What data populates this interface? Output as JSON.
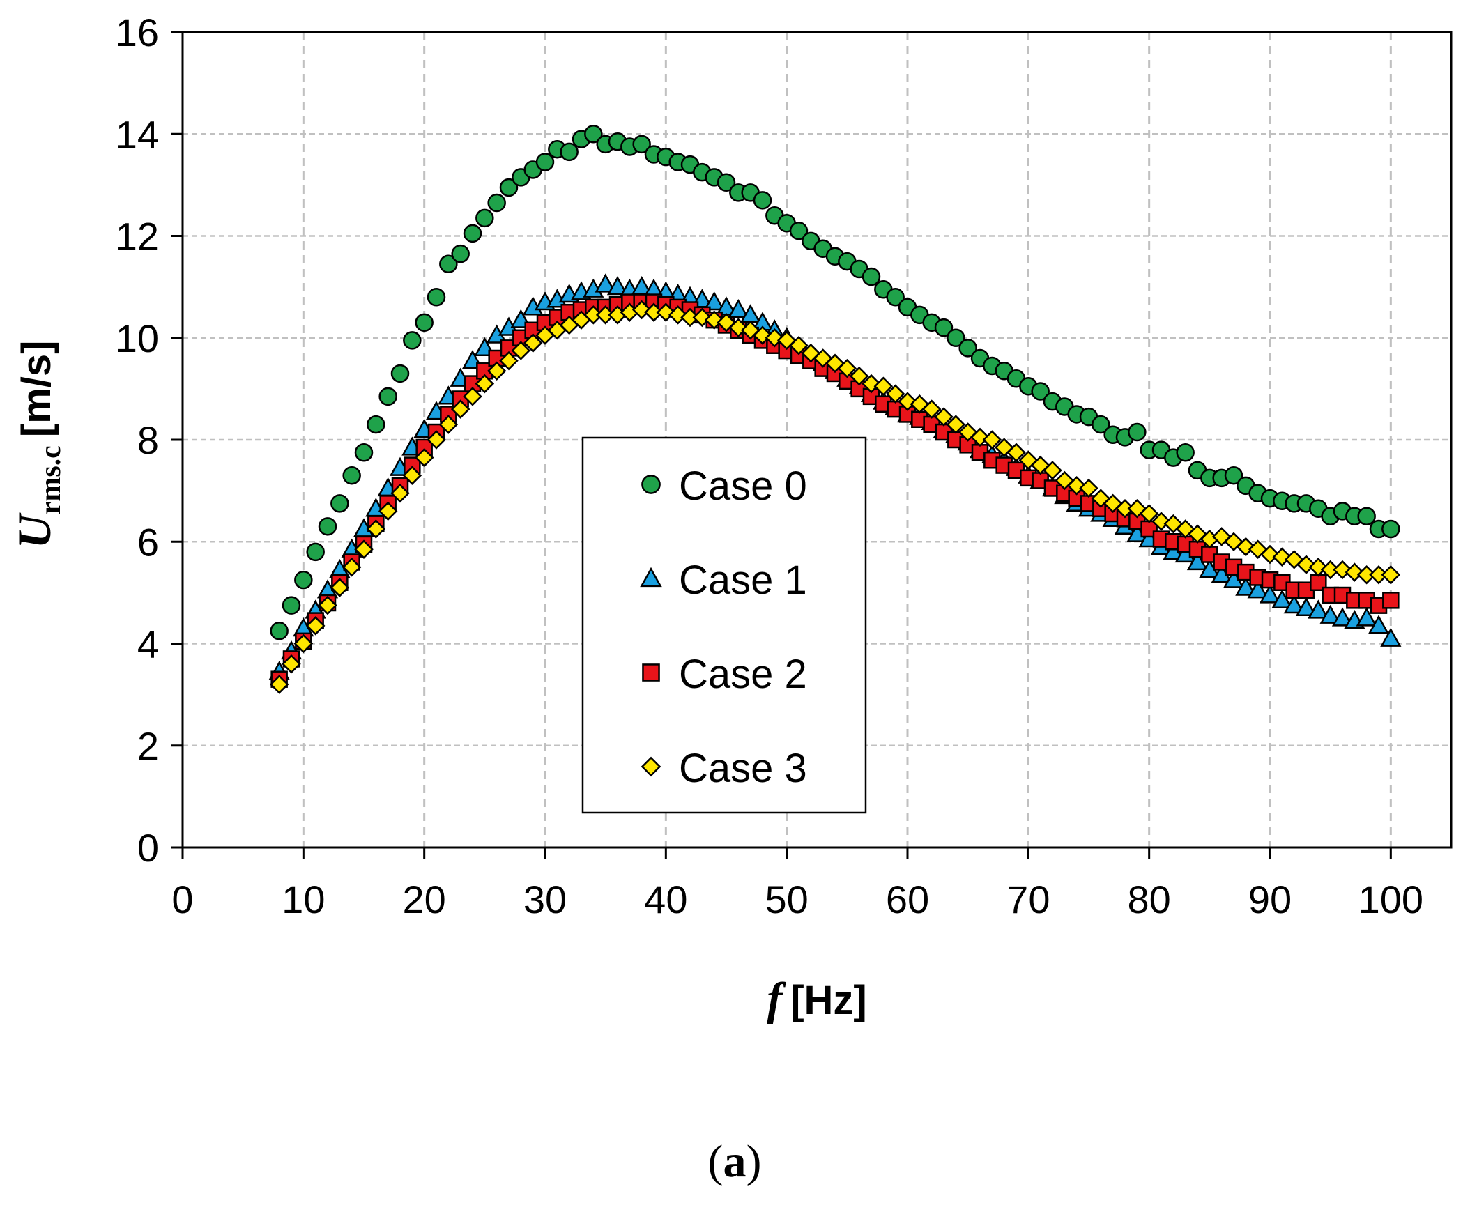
{
  "chart_data": {
    "type": "scatter",
    "title": "",
    "xlabel": {
      "symbol": "f",
      "unit": "[Hz]"
    },
    "ylabel": {
      "symbol": "U",
      "subscript": "rms.c",
      "unit": "[m/s]"
    },
    "xlim": [
      0,
      105
    ],
    "ylim": [
      0,
      16
    ],
    "xticks": [
      0,
      10,
      20,
      30,
      40,
      50,
      60,
      70,
      80,
      90,
      100
    ],
    "yticks": [
      0,
      2,
      4,
      6,
      8,
      10,
      12,
      14,
      16
    ],
    "grid": true,
    "legend_position": "center",
    "series": [
      {
        "name": "Case 0",
        "marker": "circle",
        "color": "#1FA24A",
        "x": [
          8,
          9,
          10,
          11,
          12,
          13,
          14,
          15,
          16,
          17,
          18,
          19,
          20,
          21,
          22,
          23,
          24,
          25,
          26,
          27,
          28,
          29,
          30,
          31,
          32,
          33,
          34,
          35,
          36,
          37,
          38,
          39,
          40,
          41,
          42,
          43,
          44,
          45,
          46,
          47,
          48,
          49,
          50,
          51,
          52,
          53,
          54,
          55,
          56,
          57,
          58,
          59,
          60,
          61,
          62,
          63,
          64,
          65,
          66,
          67,
          68,
          69,
          70,
          71,
          72,
          73,
          74,
          75,
          76,
          77,
          78,
          79,
          80,
          81,
          82,
          83,
          84,
          85,
          86,
          87,
          88,
          89,
          90,
          91,
          92,
          93,
          94,
          95,
          96,
          97,
          98,
          99,
          100
        ],
        "y": [
          4.25,
          4.75,
          5.25,
          5.8,
          6.3,
          6.75,
          7.3,
          7.75,
          8.3,
          8.85,
          9.3,
          9.95,
          10.3,
          10.8,
          11.45,
          11.65,
          12.05,
          12.35,
          12.65,
          12.95,
          13.15,
          13.3,
          13.45,
          13.7,
          13.65,
          13.9,
          14.0,
          13.8,
          13.85,
          13.75,
          13.8,
          13.6,
          13.55,
          13.45,
          13.4,
          13.25,
          13.15,
          13.05,
          12.85,
          12.85,
          12.7,
          12.4,
          12.25,
          12.1,
          11.9,
          11.75,
          11.6,
          11.5,
          11.35,
          11.2,
          10.95,
          10.8,
          10.6,
          10.45,
          10.3,
          10.2,
          10.0,
          9.8,
          9.6,
          9.45,
          9.35,
          9.2,
          9.05,
          8.95,
          8.75,
          8.65,
          8.5,
          8.45,
          8.3,
          8.1,
          8.05,
          8.15,
          7.8,
          7.8,
          7.65,
          7.75,
          7.4,
          7.25,
          7.25,
          7.3,
          7.1,
          6.95,
          6.85,
          6.8,
          6.75,
          6.75,
          6.65,
          6.5,
          6.6,
          6.5,
          6.5,
          6.25,
          6.25
        ]
      },
      {
        "name": "Case 1",
        "marker": "triangle",
        "color": "#1AA0E0",
        "x": [
          8,
          9,
          10,
          11,
          12,
          13,
          14,
          15,
          16,
          17,
          18,
          19,
          20,
          21,
          22,
          23,
          24,
          25,
          26,
          27,
          28,
          29,
          30,
          31,
          32,
          33,
          34,
          35,
          36,
          37,
          38,
          39,
          40,
          41,
          42,
          43,
          44,
          45,
          46,
          47,
          48,
          49,
          50,
          51,
          52,
          53,
          54,
          55,
          56,
          57,
          58,
          59,
          60,
          61,
          62,
          63,
          64,
          65,
          66,
          67,
          68,
          69,
          70,
          71,
          72,
          73,
          74,
          75,
          76,
          77,
          78,
          79,
          80,
          81,
          82,
          83,
          84,
          85,
          86,
          87,
          88,
          89,
          90,
          91,
          92,
          93,
          94,
          95,
          96,
          97,
          98,
          99,
          100
        ],
        "y": [
          3.45,
          3.85,
          4.3,
          4.65,
          5.05,
          5.45,
          5.85,
          6.25,
          6.65,
          7.05,
          7.45,
          7.85,
          8.2,
          8.55,
          8.85,
          9.2,
          9.55,
          9.8,
          10.05,
          10.2,
          10.35,
          10.6,
          10.7,
          10.75,
          10.85,
          10.9,
          10.95,
          11.05,
          11.0,
          10.95,
          11.0,
          10.95,
          10.9,
          10.85,
          10.8,
          10.75,
          10.7,
          10.6,
          10.55,
          10.45,
          10.3,
          10.15,
          10.0,
          9.8,
          9.65,
          9.5,
          9.35,
          9.2,
          9.05,
          8.9,
          8.75,
          8.65,
          8.5,
          8.45,
          8.35,
          8.2,
          8.1,
          7.95,
          7.8,
          7.7,
          7.6,
          7.45,
          7.3,
          7.2,
          7.05,
          6.9,
          6.75,
          6.65,
          6.55,
          6.45,
          6.3,
          6.15,
          6.05,
          5.9,
          5.8,
          5.75,
          5.6,
          5.45,
          5.35,
          5.25,
          5.1,
          5.05,
          4.95,
          4.85,
          4.75,
          4.7,
          4.65,
          4.55,
          4.5,
          4.45,
          4.5,
          4.35,
          4.1
        ]
      },
      {
        "name": "Case 2",
        "marker": "square",
        "color": "#E8141A",
        "x": [
          8,
          9,
          10,
          11,
          12,
          13,
          14,
          15,
          16,
          17,
          18,
          19,
          20,
          21,
          22,
          23,
          24,
          25,
          26,
          27,
          28,
          29,
          30,
          31,
          32,
          33,
          34,
          35,
          36,
          37,
          38,
          39,
          40,
          41,
          42,
          43,
          44,
          45,
          46,
          47,
          48,
          49,
          50,
          51,
          52,
          53,
          54,
          55,
          56,
          57,
          58,
          59,
          60,
          61,
          62,
          63,
          64,
          65,
          66,
          67,
          68,
          69,
          70,
          71,
          72,
          73,
          74,
          75,
          76,
          77,
          78,
          79,
          80,
          81,
          82,
          83,
          84,
          85,
          86,
          87,
          88,
          89,
          90,
          91,
          92,
          93,
          94,
          95,
          96,
          97,
          98,
          99,
          100
        ],
        "y": [
          3.3,
          3.7,
          4.05,
          4.45,
          4.8,
          5.2,
          5.6,
          5.95,
          6.35,
          6.75,
          7.1,
          7.5,
          7.85,
          8.15,
          8.5,
          8.8,
          9.1,
          9.35,
          9.6,
          9.8,
          10.0,
          10.15,
          10.3,
          10.4,
          10.5,
          10.55,
          10.6,
          10.6,
          10.65,
          10.7,
          10.7,
          10.7,
          10.65,
          10.6,
          10.55,
          10.45,
          10.35,
          10.25,
          10.15,
          10.05,
          9.95,
          9.85,
          9.75,
          9.65,
          9.55,
          9.4,
          9.3,
          9.15,
          9.0,
          8.85,
          8.7,
          8.6,
          8.5,
          8.4,
          8.3,
          8.15,
          8.0,
          7.9,
          7.75,
          7.6,
          7.5,
          7.4,
          7.25,
          7.2,
          7.05,
          6.95,
          6.85,
          6.75,
          6.65,
          6.55,
          6.45,
          6.4,
          6.25,
          6.05,
          6.0,
          5.95,
          5.85,
          5.75,
          5.6,
          5.5,
          5.4,
          5.3,
          5.25,
          5.2,
          5.05,
          5.05,
          5.2,
          4.95,
          4.95,
          4.85,
          4.85,
          4.75,
          4.85
        ]
      },
      {
        "name": "Case 3",
        "marker": "diamond",
        "color": "#FFE600",
        "x": [
          8,
          9,
          10,
          11,
          12,
          13,
          14,
          15,
          16,
          17,
          18,
          19,
          20,
          21,
          22,
          23,
          24,
          25,
          26,
          27,
          28,
          29,
          30,
          31,
          32,
          33,
          34,
          35,
          36,
          37,
          38,
          39,
          40,
          41,
          42,
          43,
          44,
          45,
          46,
          47,
          48,
          49,
          50,
          51,
          52,
          53,
          54,
          55,
          56,
          57,
          58,
          59,
          60,
          61,
          62,
          63,
          64,
          65,
          66,
          67,
          68,
          69,
          70,
          71,
          72,
          73,
          74,
          75,
          76,
          77,
          78,
          79,
          80,
          81,
          82,
          83,
          84,
          85,
          86,
          87,
          88,
          89,
          90,
          91,
          92,
          93,
          94,
          95,
          96,
          97,
          98,
          99,
          100
        ],
        "y": [
          3.2,
          3.6,
          4.0,
          4.35,
          4.75,
          5.1,
          5.5,
          5.85,
          6.25,
          6.6,
          6.95,
          7.3,
          7.65,
          8.0,
          8.3,
          8.6,
          8.85,
          9.1,
          9.35,
          9.55,
          9.75,
          9.9,
          10.05,
          10.15,
          10.25,
          10.35,
          10.45,
          10.45,
          10.45,
          10.5,
          10.55,
          10.5,
          10.5,
          10.45,
          10.4,
          10.4,
          10.35,
          10.3,
          10.2,
          10.15,
          10.05,
          10.0,
          9.95,
          9.85,
          9.7,
          9.6,
          9.5,
          9.4,
          9.25,
          9.1,
          9.05,
          8.9,
          8.75,
          8.7,
          8.6,
          8.45,
          8.3,
          8.15,
          8.05,
          8.0,
          7.85,
          7.75,
          7.6,
          7.5,
          7.4,
          7.2,
          7.1,
          7.05,
          6.85,
          6.75,
          6.65,
          6.65,
          6.55,
          6.4,
          6.35,
          6.25,
          6.15,
          6.05,
          6.1,
          6.0,
          5.9,
          5.85,
          5.75,
          5.7,
          5.65,
          5.55,
          5.5,
          5.45,
          5.45,
          5.4,
          5.35,
          5.35,
          5.35
        ]
      }
    ],
    "caption": {
      "open": "(",
      "letter": "a",
      "close": ")"
    }
  }
}
